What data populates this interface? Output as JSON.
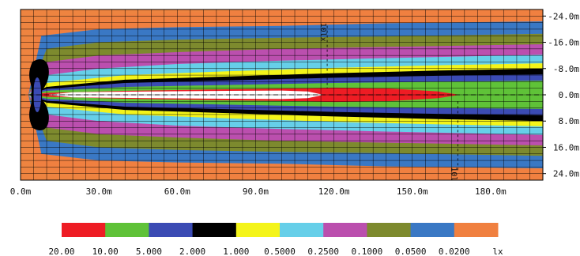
{
  "chart_data": {
    "type": "heatmap",
    "x_ticks": [
      "0.0m",
      "30.0m",
      "60.0m",
      "90.0m",
      "120.0m",
      "150.0m",
      "180.0m"
    ],
    "x_tick_values": [
      0,
      30,
      60,
      90,
      120,
      150,
      180
    ],
    "xlim": [
      0,
      200
    ],
    "y_ticks": [
      "-24.0m",
      "-16.0m",
      "-8.0m",
      "0.0m",
      "8.0m",
      "16.0m",
      "24.0m"
    ],
    "y_tick_values": [
      -24,
      -16,
      -8,
      0,
      8,
      16,
      24
    ],
    "ylim": [
      -26,
      26
    ],
    "grid": true,
    "legend": {
      "placement": "bottom",
      "levels": [
        {
          "label": "20.00",
          "color": "#ee1c24"
        },
        {
          "label": "10.00",
          "color": "#5fc238"
        },
        {
          "label": "5.000",
          "color": "#3b4bb4"
        },
        {
          "label": "2.000",
          "color": "#000000"
        },
        {
          "label": "1.000",
          "color": "#f4f41a"
        },
        {
          "label": "0.5000",
          "color": "#66cfe9"
        },
        {
          "label": "0.2500",
          "color": "#bb4fae"
        },
        {
          "label": "0.1000",
          "color": "#7d8a2e"
        },
        {
          "label": "0.0500",
          "color": "#3a78c4"
        },
        {
          "label": "0.0200",
          "color": "#f08040"
        }
      ],
      "unit": "lx"
    },
    "contour_halfwidths": [
      {
        "label": "20.00",
        "points": [
          [
            3,
            0
          ],
          [
            10,
            0.6
          ],
          [
            40,
            1.2
          ],
          [
            70,
            1.6
          ],
          [
            100,
            1.9
          ],
          [
            120,
            2.2
          ],
          [
            140,
            2.0
          ],
          [
            160,
            1.0
          ],
          [
            168,
            0
          ]
        ]
      },
      {
        "label": "10.00",
        "points": [
          [
            3,
            0
          ],
          [
            10,
            1.2
          ],
          [
            40,
            2.4
          ],
          [
            80,
            3.0
          ],
          [
            120,
            3.6
          ],
          [
            160,
            4.0
          ],
          [
            200,
            4.3
          ]
        ]
      },
      {
        "label": "5.000",
        "points": [
          [
            3,
            0
          ],
          [
            10,
            1.8
          ],
          [
            40,
            3.6
          ],
          [
            80,
            4.4
          ],
          [
            120,
            5.2
          ],
          [
            160,
            5.8
          ],
          [
            200,
            6.2
          ]
        ]
      },
      {
        "label": "2.000",
        "points": [
          [
            3,
            0
          ],
          [
            10,
            2.4
          ],
          [
            40,
            4.6
          ],
          [
            80,
            5.6
          ],
          [
            120,
            6.6
          ],
          [
            160,
            7.4
          ],
          [
            200,
            8.0
          ]
        ]
      },
      {
        "label": "1.000",
        "points": [
          [
            3,
            0
          ],
          [
            10,
            3.6
          ],
          [
            40,
            6.0
          ],
          [
            80,
            7.2
          ],
          [
            120,
            8.2
          ],
          [
            160,
            9.0
          ],
          [
            200,
            9.6
          ]
        ]
      },
      {
        "label": "0.5000",
        "points": [
          [
            3,
            0
          ],
          [
            10,
            6
          ],
          [
            30,
            8
          ],
          [
            60,
            9.4
          ],
          [
            100,
            10.4
          ],
          [
            140,
            11.2
          ],
          [
            200,
            12.2
          ]
        ]
      },
      {
        "label": "0.2500",
        "points": [
          [
            3,
            0
          ],
          [
            10,
            10
          ],
          [
            30,
            12
          ],
          [
            60,
            13
          ],
          [
            100,
            14
          ],
          [
            140,
            14.6
          ],
          [
            200,
            15.4
          ]
        ]
      },
      {
        "label": "0.1000",
        "points": [
          [
            3,
            0
          ],
          [
            10,
            14
          ],
          [
            30,
            16
          ],
          [
            60,
            16.8
          ],
          [
            100,
            17.4
          ],
          [
            140,
            17.8
          ],
          [
            200,
            18.6
          ]
        ]
      },
      {
        "label": "0.0500",
        "points": [
          [
            3,
            0
          ],
          [
            8,
            18
          ],
          [
            30,
            20
          ],
          [
            60,
            20.6
          ],
          [
            100,
            21
          ],
          [
            140,
            21.8
          ],
          [
            200,
            22.4
          ]
        ]
      },
      {
        "label": "0.0200",
        "points": [
          [
            2,
            0
          ],
          [
            6,
            22
          ],
          [
            20,
            24
          ],
          [
            60,
            25
          ],
          [
            100,
            26
          ],
          [
            200,
            27
          ]
        ]
      }
    ],
    "white_core": {
      "points": [
        [
          10,
          0
        ],
        [
          20,
          0.8
        ],
        [
          50,
          1.0
        ],
        [
          80,
          1.2
        ],
        [
          100,
          1.3
        ],
        [
          110,
          1.0
        ],
        [
          116,
          0
        ]
      ]
    },
    "luminaire_marker": {
      "x": 7,
      "y_range": [
        -12,
        12
      ]
    },
    "annotations": [
      {
        "text": "10lx",
        "x": 115,
        "y": -22
      },
      {
        "text": "10lx",
        "x": 165,
        "y": 22
      }
    ]
  }
}
